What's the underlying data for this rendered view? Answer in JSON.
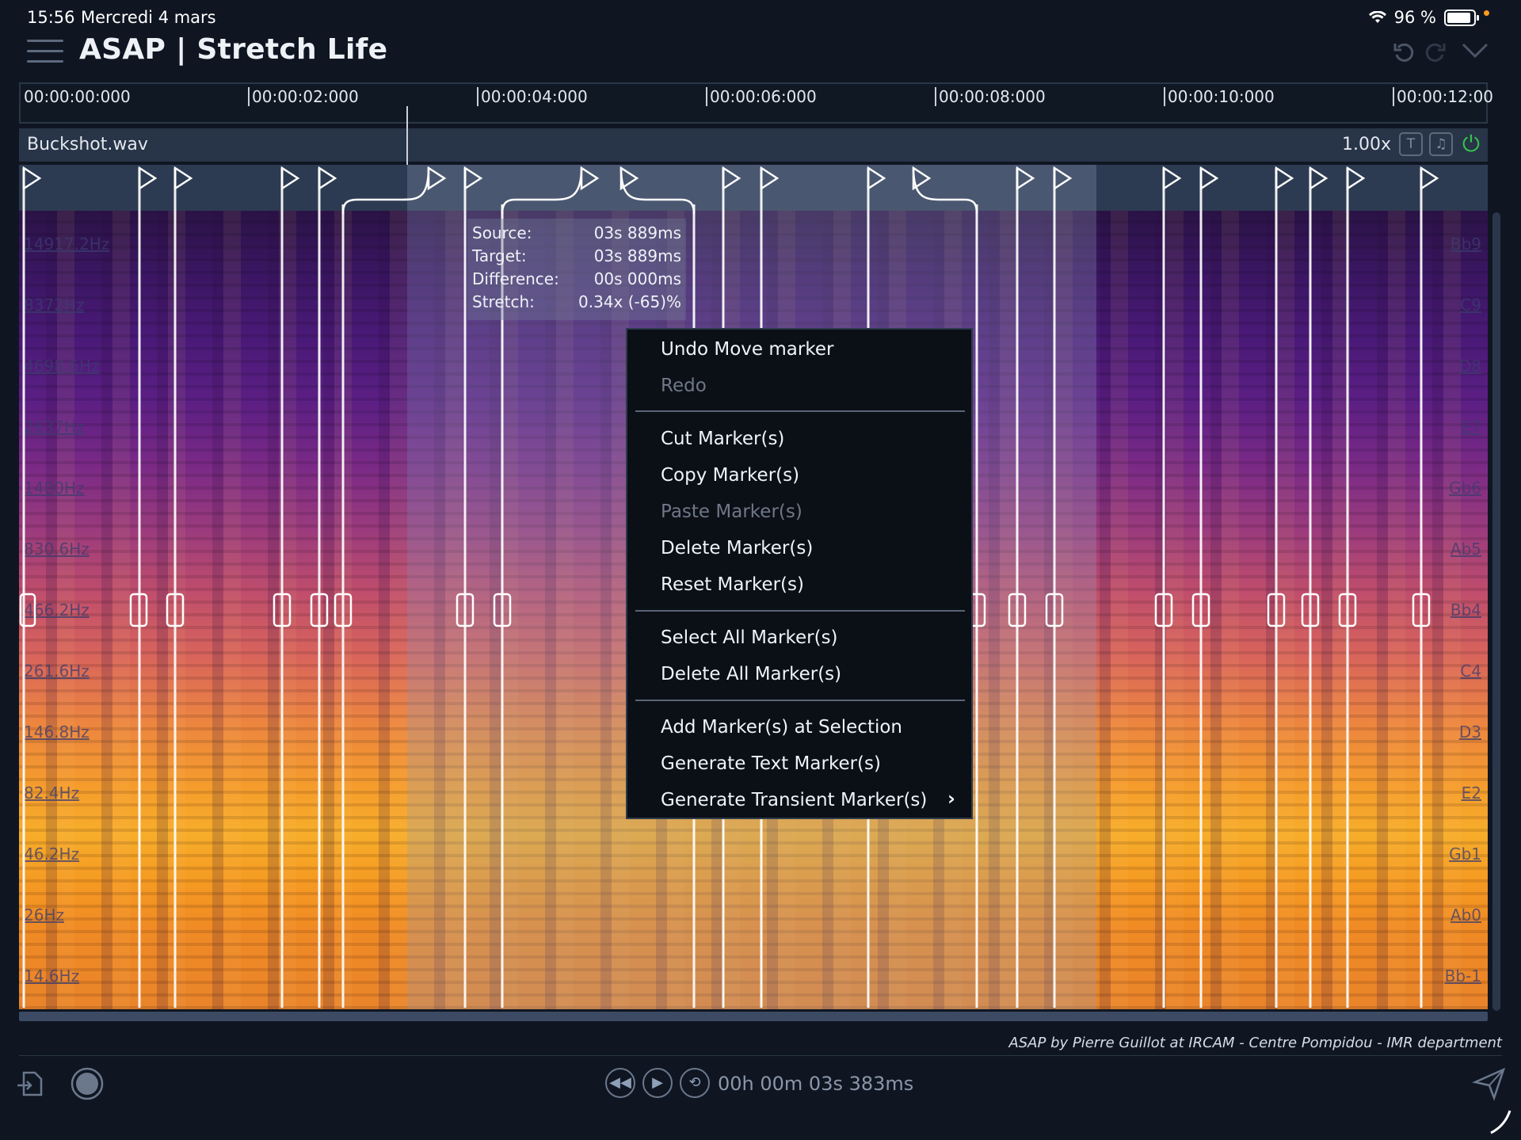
{
  "status_bar": {
    "time": "15:56",
    "date": "Mercredi 4 mars",
    "battery": "96 %"
  },
  "app": {
    "title": "ASAP | Stretch Life"
  },
  "ruler": {
    "ticks": [
      "00:00:00:000",
      "00:00:02:000",
      "00:00:04:000",
      "00:00:06:000",
      "00:00:08:000",
      "00:00:10:000",
      "00:00:12:00"
    ]
  },
  "track": {
    "name": "Buckshot.wav",
    "rate": "1.00x"
  },
  "spectrogram": {
    "freq_labels": [
      "14917.2Hz",
      "8372Hz",
      "4698.6Hz",
      "2637Hz",
      "1480Hz",
      "830.6Hz",
      "466.2Hz",
      "261.6Hz",
      "146.8Hz",
      "82.4Hz",
      "46.2Hz",
      "26Hz",
      "14.6Hz"
    ],
    "note_labels": [
      "Bb9",
      "C9",
      "D8",
      "E7",
      "Gb6",
      "Ab5",
      "Bb4",
      "C4",
      "D3",
      "E2",
      "Gb1",
      "Ab0",
      "Bb-1"
    ]
  },
  "info_panel": {
    "rows": [
      {
        "label": "Source:",
        "value": "03s 889ms"
      },
      {
        "label": "Target:",
        "value": "03s 889ms"
      },
      {
        "label": "Difference:",
        "value": "00s 000ms"
      },
      {
        "label": "Stretch:",
        "value": "0.34x (-65)%"
      }
    ]
  },
  "context_menu": {
    "items": [
      {
        "label": "Undo Move marker",
        "enabled": true
      },
      {
        "label": "Redo",
        "enabled": false
      },
      {
        "label": "Cut Marker(s)",
        "enabled": true
      },
      {
        "label": "Copy Marker(s)",
        "enabled": true
      },
      {
        "label": "Paste Marker(s)",
        "enabled": false
      },
      {
        "label": "Delete Marker(s)",
        "enabled": true
      },
      {
        "label": "Reset Marker(s)",
        "enabled": true
      },
      {
        "label": "Select All Marker(s)",
        "enabled": true
      },
      {
        "label": "Delete All Marker(s)",
        "enabled": true
      },
      {
        "label": "Add Marker(s) at Selection",
        "enabled": true
      },
      {
        "label": "Generate Text Marker(s)",
        "enabled": true
      },
      {
        "label": "Generate Transient Marker(s)",
        "enabled": true
      }
    ]
  },
  "footer": {
    "credits": "ASAP by Pierre Guillot at IRCAM - Centre Pompidou - IMR department",
    "timecode": "00h 00m 03s 383ms"
  },
  "icons": {
    "menu": "hamburger-icon",
    "undo": "undo-icon",
    "redo": "redo-icon",
    "collapse": "chevron-down-icon",
    "text_marker": "text-marker-icon",
    "note": "note-icon",
    "power": "power-icon",
    "export": "export-icon",
    "record": "record-icon",
    "rewind": "rewind-icon",
    "play": "play-icon",
    "loop": "loop-icon",
    "send": "send-icon"
  },
  "colors": {
    "power_on": "#34c34b",
    "background": "#0f1622",
    "accent_orange": "#f59c2c"
  }
}
